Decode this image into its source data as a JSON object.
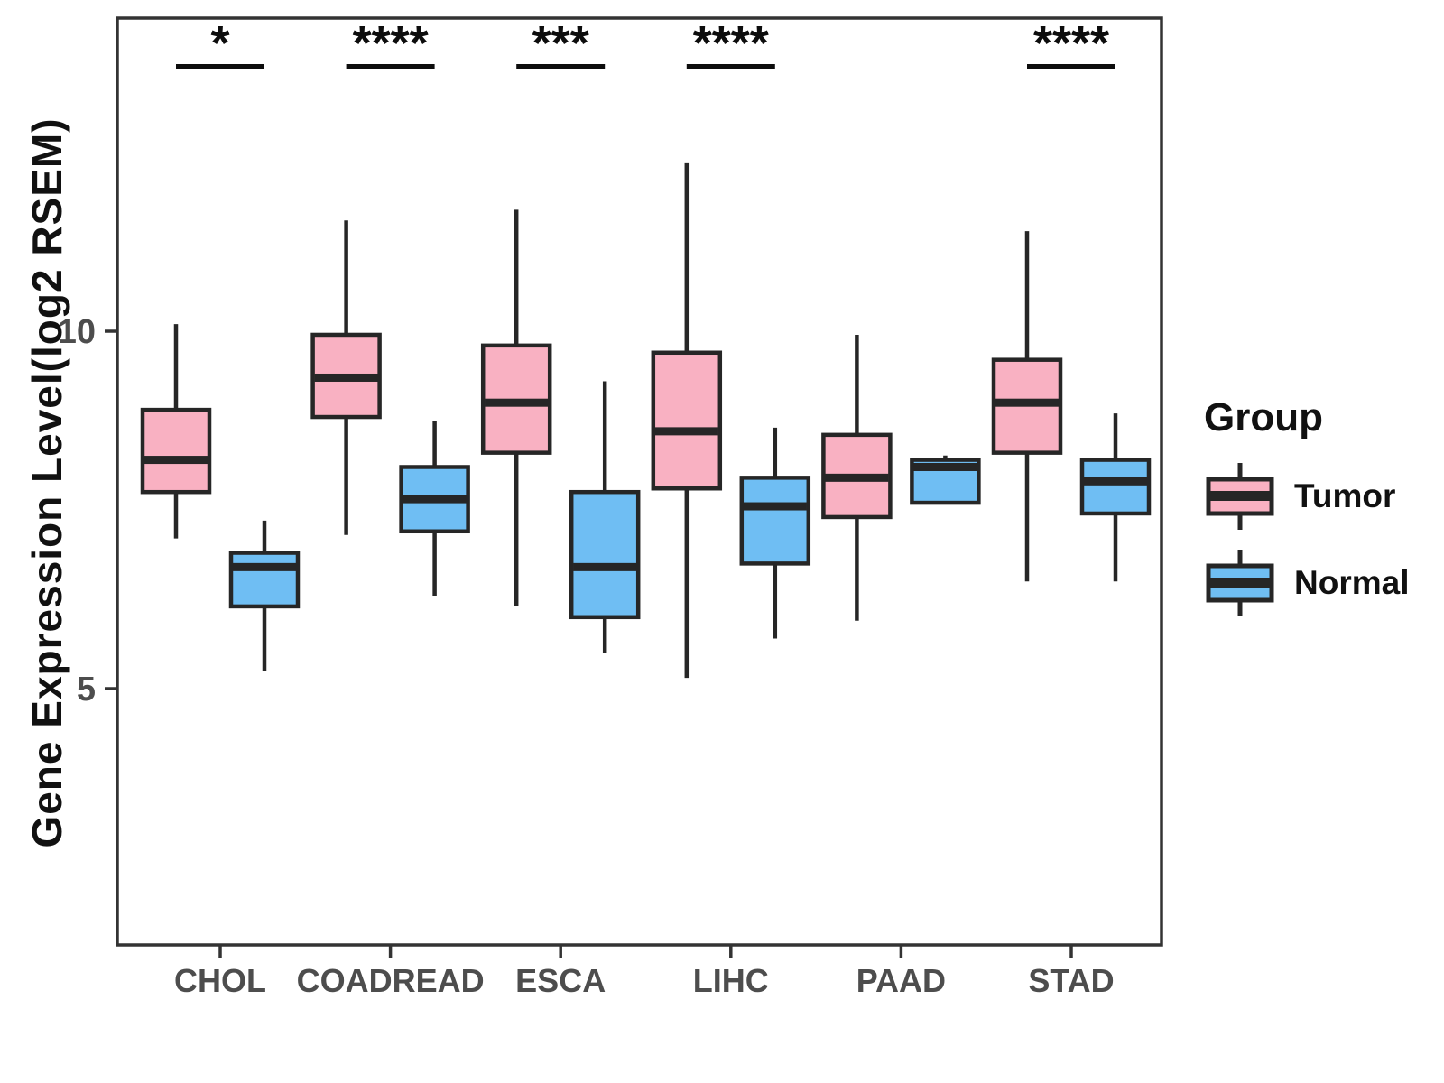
{
  "chart_data": {
    "type": "grouped_boxplot",
    "title": "",
    "xlabel": "",
    "ylabel": "Gene Expression Level(log2 RSEM)",
    "categories": [
      "CHOL",
      "COADREAD",
      "ESCA",
      "LIHC",
      "PAAD",
      "STAD"
    ],
    "y_axis": {
      "ticks": [
        5,
        10
      ],
      "visible_range": [
        1.4,
        14.4
      ],
      "grid": false
    },
    "legend": {
      "title": "Group",
      "position": "right",
      "items": [
        {
          "label": "Tumor",
          "color": "#F9B1C2"
        },
        {
          "label": "Normal",
          "color": "#6FBEF3"
        }
      ]
    },
    "series": [
      {
        "name": "Tumor",
        "color": "#F9B1C2",
        "boxes": [
          {
            "category": "CHOL",
            "min": 7.1,
            "q1": 7.75,
            "median": 8.2,
            "q3": 8.9,
            "max": 10.1
          },
          {
            "category": "COADREAD",
            "min": 7.15,
            "q1": 8.8,
            "median": 9.35,
            "q3": 9.95,
            "max": 11.55
          },
          {
            "category": "ESCA",
            "min": 6.15,
            "q1": 8.3,
            "median": 9.0,
            "q3": 9.8,
            "max": 11.7
          },
          {
            "category": "LIHC",
            "min": 5.15,
            "q1": 7.8,
            "median": 8.6,
            "q3": 9.7,
            "max": 12.35
          },
          {
            "category": "PAAD",
            "min": 5.95,
            "q1": 7.4,
            "median": 7.95,
            "q3": 8.55,
            "max": 9.95
          },
          {
            "category": "STAD",
            "min": 6.5,
            "q1": 8.3,
            "median": 9.0,
            "q3": 9.6,
            "max": 11.4
          }
        ]
      },
      {
        "name": "Normal",
        "color": "#6FBEF3",
        "boxes": [
          {
            "category": "CHOL",
            "min": 5.25,
            "q1": 6.15,
            "median": 6.7,
            "q3": 6.9,
            "max": 7.35
          },
          {
            "category": "COADREAD",
            "min": 6.3,
            "q1": 7.2,
            "median": 7.65,
            "q3": 8.1,
            "max": 8.75
          },
          {
            "category": "ESCA",
            "min": 5.5,
            "q1": 6.0,
            "median": 6.7,
            "q3": 7.75,
            "max": 9.3
          },
          {
            "category": "LIHC",
            "min": 5.7,
            "q1": 6.75,
            "median": 7.55,
            "q3": 7.95,
            "max": 8.65
          },
          {
            "category": "PAAD",
            "min": 7.6,
            "q1": 7.6,
            "median": 8.1,
            "q3": 8.2,
            "max": 8.26
          },
          {
            "category": "STAD",
            "min": 6.5,
            "q1": 7.45,
            "median": 7.9,
            "q3": 8.2,
            "max": 8.85
          }
        ]
      }
    ],
    "significance": [
      {
        "category": "CHOL",
        "label": "*"
      },
      {
        "category": "COADREAD",
        "label": "****"
      },
      {
        "category": "ESCA",
        "label": "***"
      },
      {
        "category": "LIHC",
        "label": "****"
      },
      {
        "category": "STAD",
        "label": "****"
      }
    ]
  },
  "style": {
    "box_stroke": "#262626",
    "panel_border": "#333333",
    "tick_text_color": "#4D4D4D",
    "star_color": "#0D0D0D",
    "background": "#FFFFFF"
  }
}
